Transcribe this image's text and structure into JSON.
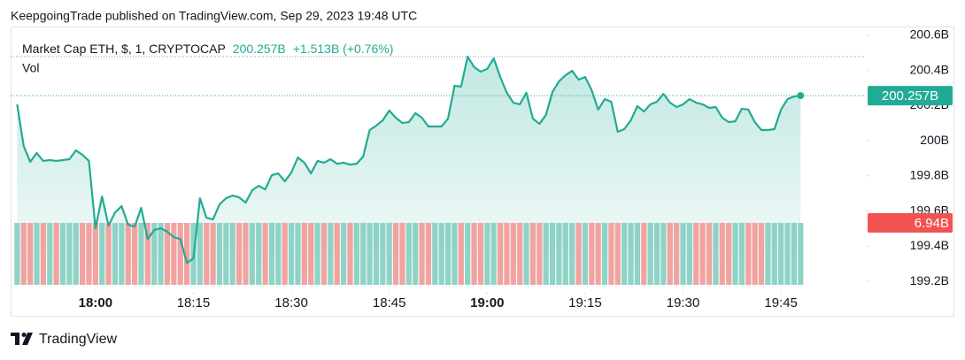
{
  "header": {
    "text": "KeepgoingTrade published on TradingView.com, Sep 29, 2023 19:48 UTC"
  },
  "chart_data": {
    "type": "area",
    "title": "Market Cap ETH, $, 1, CRYPTOCAP",
    "last_label": "200.257B",
    "change_label": "+1.513B (+0.76%)",
    "color": "#22ab94",
    "x": [
      "17:48",
      "17:49",
      "17:50",
      "17:51",
      "17:52",
      "17:53",
      "17:54",
      "17:55",
      "17:56",
      "17:57",
      "17:58",
      "17:59",
      "18:00",
      "18:01",
      "18:02",
      "18:03",
      "18:04",
      "18:05",
      "18:06",
      "18:07",
      "18:08",
      "18:09",
      "18:10",
      "18:11",
      "18:12",
      "18:13",
      "18:14",
      "18:15",
      "18:16",
      "18:17",
      "18:18",
      "18:19",
      "18:20",
      "18:21",
      "18:22",
      "18:23",
      "18:24",
      "18:25",
      "18:26",
      "18:27",
      "18:28",
      "18:29",
      "18:30",
      "18:31",
      "18:32",
      "18:33",
      "18:34",
      "18:35",
      "18:36",
      "18:37",
      "18:38",
      "18:39",
      "18:40",
      "18:41",
      "18:42",
      "18:43",
      "18:44",
      "18:45",
      "18:46",
      "18:47",
      "18:48",
      "18:49",
      "18:50",
      "18:51",
      "18:52",
      "18:53",
      "18:54",
      "18:55",
      "18:56",
      "18:57",
      "18:58",
      "18:59",
      "19:00",
      "19:01",
      "19:02",
      "19:03",
      "19:04",
      "19:05",
      "19:06",
      "19:07",
      "19:08",
      "19:09",
      "19:10",
      "19:11",
      "19:12",
      "19:13",
      "19:14",
      "19:15",
      "19:16",
      "19:17",
      "19:18",
      "19:19",
      "19:20",
      "19:21",
      "19:22",
      "19:23",
      "19:24",
      "19:25",
      "19:26",
      "19:27",
      "19:28",
      "19:29",
      "19:30",
      "19:31",
      "19:32",
      "19:33",
      "19:34",
      "19:35",
      "19:36",
      "19:37",
      "19:38",
      "19:39",
      "19:40",
      "19:41",
      "19:42",
      "19:43",
      "19:44",
      "19:45",
      "19:46",
      "19:47",
      "19:48"
    ],
    "values": [
      200.207,
      199.97,
      199.88,
      199.93,
      199.885,
      199.89,
      199.885,
      199.89,
      199.895,
      199.945,
      199.92,
      199.885,
      199.502,
      199.683,
      199.517,
      199.592,
      199.628,
      199.522,
      199.512,
      199.618,
      199.441,
      199.492,
      199.502,
      199.482,
      199.451,
      199.441,
      199.305,
      199.33,
      199.673,
      199.562,
      199.552,
      199.638,
      199.673,
      199.688,
      199.678,
      199.648,
      199.718,
      199.744,
      199.723,
      199.804,
      199.814,
      199.769,
      199.819,
      199.905,
      199.875,
      199.814,
      199.885,
      199.875,
      199.895,
      199.869,
      199.875,
      199.864,
      199.869,
      199.91,
      200.061,
      200.086,
      200.116,
      200.172,
      200.131,
      200.101,
      200.106,
      200.157,
      200.131,
      200.081,
      200.081,
      200.081,
      200.126,
      200.313,
      200.308,
      200.479,
      200.419,
      200.393,
      200.409,
      200.469,
      200.363,
      200.273,
      200.217,
      200.207,
      200.273,
      200.126,
      200.096,
      200.147,
      200.278,
      200.338,
      200.373,
      200.398,
      200.348,
      200.363,
      200.288,
      200.177,
      200.237,
      200.222,
      200.051,
      200.066,
      200.116,
      200.197,
      200.167,
      200.207,
      200.222,
      200.267,
      200.217,
      200.192,
      200.207,
      200.237,
      200.217,
      200.207,
      200.187,
      200.192,
      200.131,
      200.106,
      200.111,
      200.182,
      200.177,
      200.106,
      200.061,
      200.061,
      200.066,
      200.177,
      200.237,
      200.252,
      200.257
    ],
    "xlim": [
      "17:47",
      "19:58"
    ],
    "xticks": [
      "18:00",
      "18:15",
      "18:30",
      "18:45",
      "19:00",
      "19:15",
      "19:30",
      "19:45"
    ],
    "ylim": [
      199.165,
      200.65
    ],
    "yticks": [
      {
        "value": 199.2,
        "label": "199.2B"
      },
      {
        "value": 199.4,
        "label": "199.4B"
      },
      {
        "value": 199.6,
        "label": "199.6B"
      },
      {
        "value": 199.8,
        "label": "199.8B"
      },
      {
        "value": 200,
        "label": "200B"
      },
      {
        "value": 200.2,
        "label": "200.2B"
      },
      {
        "value": 200.4,
        "label": "200.4B"
      },
      {
        "value": 200.6,
        "label": "200.6B"
      }
    ],
    "volume": {
      "name": "Vol",
      "last_label": "6.94B",
      "lim": [
        0,
        6.94
      ],
      "up_color": "#8fd3c7",
      "down_color": "#f2a3a0",
      "label_color": "#f05350",
      "values": [
        6.94,
        6.94,
        6.94,
        6.94,
        6.94,
        6.94,
        6.94,
        6.94,
        6.94,
        6.94,
        6.94,
        6.94,
        6.94,
        6.94,
        6.94,
        6.94,
        6.94,
        6.94,
        6.94,
        6.94,
        6.94,
        6.94,
        6.94,
        6.94,
        6.94,
        6.94,
        6.94,
        6.94,
        6.94,
        6.94,
        6.94,
        6.94,
        6.94,
        6.94,
        6.94,
        6.94,
        6.94,
        6.94,
        6.94,
        6.94,
        6.94,
        6.94,
        6.94,
        6.94,
        6.94,
        6.94,
        6.94,
        6.94,
        6.94,
        6.94,
        6.94,
        6.94,
        6.94,
        6.94,
        6.94,
        6.94,
        6.94,
        6.94,
        6.94,
        6.94,
        6.94,
        6.94,
        6.94,
        6.94,
        6.94,
        6.94,
        6.94,
        6.94,
        6.94,
        6.94,
        6.94,
        6.94,
        6.94,
        6.94,
        6.94,
        6.94,
        6.94,
        6.94,
        6.94,
        6.94,
        6.94,
        6.94,
        6.94,
        6.94,
        6.94,
        6.94,
        6.94,
        6.94,
        6.94,
        6.94,
        6.94,
        6.94,
        6.94,
        6.94,
        6.94,
        6.94,
        6.94,
        6.94,
        6.94,
        6.94,
        6.94,
        6.94,
        6.94,
        6.94,
        6.94,
        6.94,
        6.94,
        6.94,
        6.94,
        6.94,
        6.94,
        6.94,
        6.94,
        6.94,
        6.94,
        6.94,
        6.94,
        6.94,
        6.94,
        6.94,
        6.94
      ]
    }
  },
  "footer": {
    "brand": "TradingView"
  }
}
